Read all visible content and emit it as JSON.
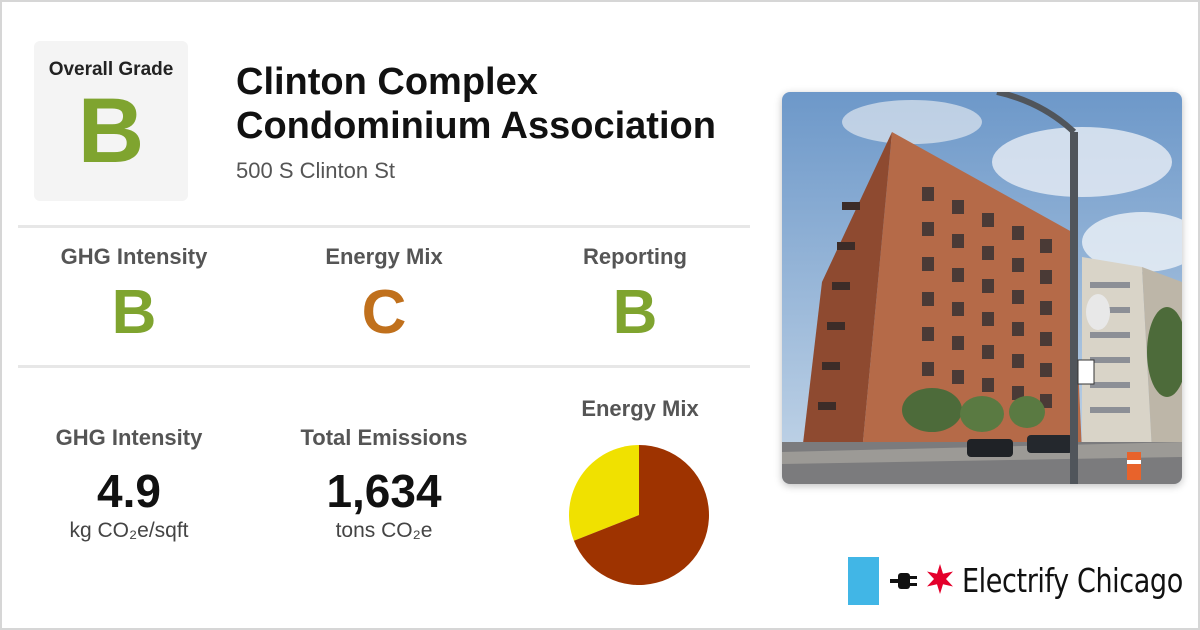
{
  "colors": {
    "grade_b": "#7fa42f",
    "grade_c": "#c0701c",
    "pie_electric": "#f0e100",
    "pie_gas": "#9e3300",
    "chicago_blue": "#41b6e6",
    "chicago_red": "#e4002b"
  },
  "overall": {
    "label": "Overall Grade",
    "grade": "B"
  },
  "building": {
    "name": "Clinton Complex Condominium Association",
    "address": "500 S Clinton St"
  },
  "grades": [
    {
      "label": "GHG Intensity",
      "grade": "B"
    },
    {
      "label": "Energy Mix",
      "grade": "C"
    },
    {
      "label": "Reporting",
      "grade": "B"
    }
  ],
  "stats": {
    "ghg": {
      "label": "GHG Intensity",
      "value": "4.9",
      "unit": "kg CO₂e/sqft"
    },
    "emissions": {
      "label": "Total Emissions",
      "value": "1,634",
      "unit": "tons CO₂e"
    }
  },
  "energy_mix": {
    "title": "Energy Mix"
  },
  "chart_data": {
    "type": "pie",
    "title": "Energy Mix",
    "slices": [
      {
        "color": "#f0e100",
        "value": 31
      },
      {
        "color": "#9e3300",
        "value": 69
      }
    ]
  },
  "photo": {
    "icon": "building-photo"
  },
  "brand": {
    "name": "Electrify Chicago",
    "icons": [
      "chicago-flag-icon",
      "plug-icon",
      "red-star-icon"
    ]
  }
}
